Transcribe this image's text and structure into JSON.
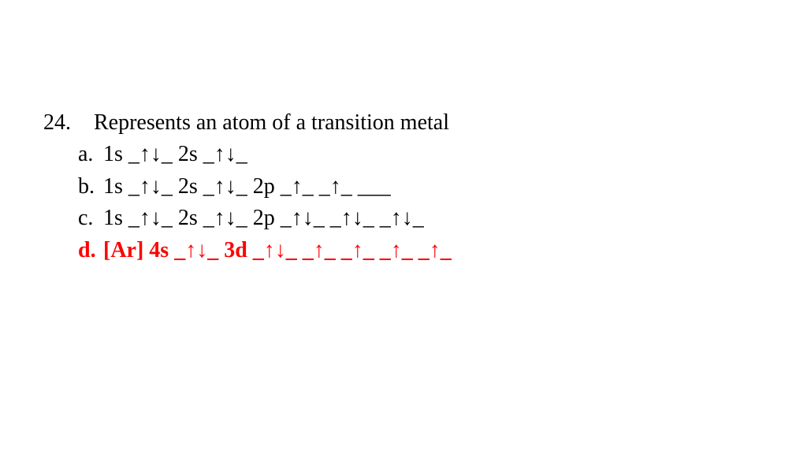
{
  "question": {
    "number": "24.",
    "text": "Represents an atom of a transition metal"
  },
  "options": [
    {
      "label": "a.",
      "config": "1s _↑↓_ 2s _↑↓_",
      "highlight": false
    },
    {
      "label": "b.",
      "config": "1s _↑↓_ 2s _↑↓_ 2p _↑_ _↑_ ___",
      "highlight": false
    },
    {
      "label": "c.",
      "config": "1s _↑↓_ 2s _↑↓_ 2p _↑↓_ _↑↓_ _↑↓_",
      "highlight": false
    },
    {
      "label": "d.",
      "config": "[Ar] 4s _↑↓_ 3d _↑↓_ _↑_ _↑_ _↑_ _↑_",
      "highlight": true
    }
  ],
  "style": {
    "text_color": "#000000",
    "highlight_color": "#ff0000",
    "background": "#ffffff",
    "font_family": "Times New Roman",
    "font_size_pt": 21
  }
}
